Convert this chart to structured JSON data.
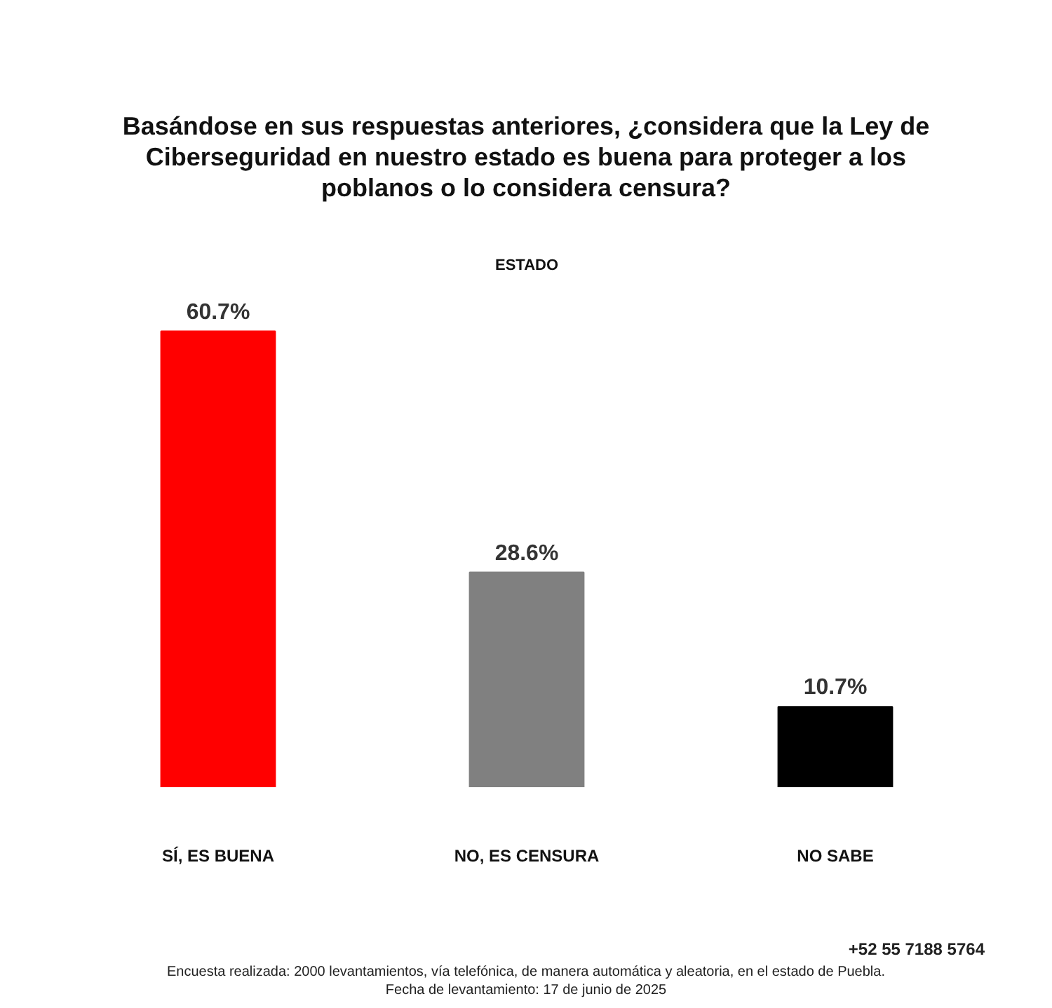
{
  "chart_data": {
    "type": "bar",
    "title": "Basándose en sus respuestas anteriores, ¿considera que la Ley de Ciberseguridad en nuestro estado es buena para proteger a los poblanos o lo considera censura?",
    "subtitle": "ESTADO",
    "categories": [
      "SÍ, ES BUENA",
      "NO, ES CENSURA",
      "NO SABE"
    ],
    "values": [
      60.7,
      28.6,
      10.7
    ],
    "colors": [
      "#ff0000",
      "#808080",
      "#000000"
    ],
    "value_labels": [
      "60.7%",
      "28.6%",
      "10.7%"
    ],
    "annotations": [
      "+52 55 7188 5764",
      "Encuesta realizada: 2000 levantamientos, vía telefónica, de manera automática y aleatoria, en el estado de Puebla.",
      "Fecha de levantamiento: 17 de junio de 2025"
    ]
  }
}
